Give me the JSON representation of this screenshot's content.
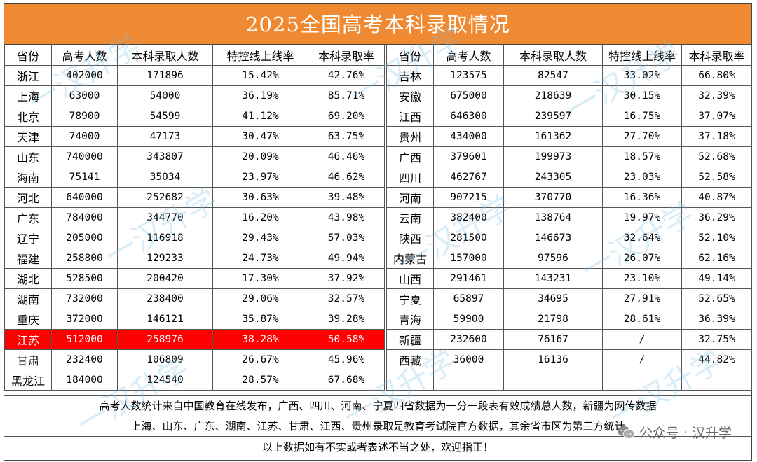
{
  "title": "2025全国高考本科录取情况",
  "headers": [
    "省份",
    "高考人数",
    "本科录取人数",
    "特控线上线率",
    "本科录取率"
  ],
  "left_rows": [
    {
      "province": "浙江",
      "exam": "402000",
      "admitted": "171896",
      "special_rate": "15.42%",
      "admit_rate": "42.76%"
    },
    {
      "province": "上海",
      "exam": "63000",
      "admitted": "54000",
      "special_rate": "36.19%",
      "admit_rate": "85.71%"
    },
    {
      "province": "北京",
      "exam": "78900",
      "admitted": "54599",
      "special_rate": "41.12%",
      "admit_rate": "69.20%"
    },
    {
      "province": "天津",
      "exam": "74000",
      "admitted": "47173",
      "special_rate": "30.47%",
      "admit_rate": "63.75%"
    },
    {
      "province": "山东",
      "exam": "740000",
      "admitted": "343807",
      "special_rate": "20.09%",
      "admit_rate": "46.46%"
    },
    {
      "province": "海南",
      "exam": "75141",
      "admitted": "35034",
      "special_rate": "23.97%",
      "admit_rate": "46.62%"
    },
    {
      "province": "河北",
      "exam": "640000",
      "admitted": "252682",
      "special_rate": "30.63%",
      "admit_rate": "39.48%"
    },
    {
      "province": "广东",
      "exam": "784000",
      "admitted": "344770",
      "special_rate": "16.20%",
      "admit_rate": "43.98%"
    },
    {
      "province": "辽宁",
      "exam": "205000",
      "admitted": "116918",
      "special_rate": "29.43%",
      "admit_rate": "57.03%"
    },
    {
      "province": "福建",
      "exam": "258800",
      "admitted": "129233",
      "special_rate": "24.73%",
      "admit_rate": "49.94%"
    },
    {
      "province": "湖北",
      "exam": "528500",
      "admitted": "200420",
      "special_rate": "17.30%",
      "admit_rate": "37.92%"
    },
    {
      "province": "湖南",
      "exam": "732000",
      "admitted": "238400",
      "special_rate": "29.06%",
      "admit_rate": "32.57%"
    },
    {
      "province": "重庆",
      "exam": "372000",
      "admitted": "146121",
      "special_rate": "35.87%",
      "admit_rate": "39.28%"
    },
    {
      "province": "江苏",
      "exam": "512000",
      "admitted": "258976",
      "special_rate": "38.28%",
      "admit_rate": "50.58%",
      "highlight": true
    },
    {
      "province": "甘肃",
      "exam": "232400",
      "admitted": "106809",
      "special_rate": "26.67%",
      "admit_rate": "45.96%"
    },
    {
      "province": "黑龙江",
      "exam": "184000",
      "admitted": "124540",
      "special_rate": "28.57%",
      "admit_rate": "67.68%"
    }
  ],
  "right_rows": [
    {
      "province": "吉林",
      "exam": "123575",
      "admitted": "82547",
      "special_rate": "33.02%",
      "admit_rate": "66.80%"
    },
    {
      "province": "安徽",
      "exam": "675000",
      "admitted": "218639",
      "special_rate": "30.15%",
      "admit_rate": "32.39%"
    },
    {
      "province": "江西",
      "exam": "646300",
      "admitted": "239597",
      "special_rate": "16.75%",
      "admit_rate": "37.07%"
    },
    {
      "province": "贵州",
      "exam": "434000",
      "admitted": "161362",
      "special_rate": "27.70%",
      "admit_rate": "37.18%"
    },
    {
      "province": "广西",
      "exam": "379601",
      "admitted": "199973",
      "special_rate": "18.57%",
      "admit_rate": "52.68%"
    },
    {
      "province": "四川",
      "exam": "462767",
      "admitted": "243305",
      "special_rate": "23.03%",
      "admit_rate": "52.58%"
    },
    {
      "province": "河南",
      "exam": "907215",
      "admitted": "370770",
      "special_rate": "16.36%",
      "admit_rate": "40.87%"
    },
    {
      "province": "云南",
      "exam": "382400",
      "admitted": "138764",
      "special_rate": "19.97%",
      "admit_rate": "36.29%"
    },
    {
      "province": "陕西",
      "exam": "281500",
      "admitted": "146673",
      "special_rate": "32.64%",
      "admit_rate": "52.10%"
    },
    {
      "province": "内蒙古",
      "exam": "157000",
      "admitted": "97596",
      "special_rate": "26.07%",
      "admit_rate": "62.16%"
    },
    {
      "province": "山西",
      "exam": "291461",
      "admitted": "143231",
      "special_rate": "23.10%",
      "admit_rate": "49.14%"
    },
    {
      "province": "宁夏",
      "exam": "65897",
      "admitted": "34695",
      "special_rate": "27.91%",
      "admit_rate": "52.65%"
    },
    {
      "province": "青海",
      "exam": "59900",
      "admitted": "21798",
      "special_rate": "28.61%",
      "admit_rate": "36.39%"
    },
    {
      "province": "新疆",
      "exam": "232600",
      "admitted": "76167",
      "special_rate": "/",
      "admit_rate": "32.75%"
    },
    {
      "province": "西藏",
      "exam": "36000",
      "admitted": "16136",
      "special_rate": "/",
      "admit_rate": "44.82%"
    }
  ],
  "notes": [
    "高考人数统计来自中国教育在线发布，广西、四川、河南、宁夏四省数据为一分一段表有效成绩总人数，新疆为网传数据",
    "上海、山东、广东、湖南、江苏、甘肃、江西、贵州录取是教育考试院官方数据，其余省市区为第三方统计",
    "以上数据如有不实或者表述不当之处，欢迎指正！"
  ],
  "watermark": "一汉升学",
  "brand": {
    "platform": "公众号",
    "dot": "·",
    "account": "汉升学"
  },
  "colors": {
    "title_bg": "#f08a32",
    "highlight": "#ff0000"
  }
}
